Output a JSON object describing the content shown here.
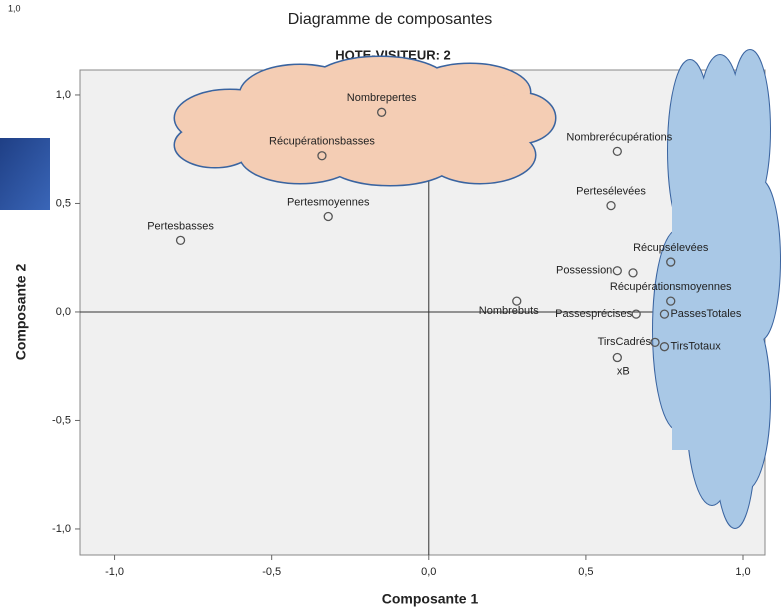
{
  "chart_data": {
    "type": "scatter",
    "corner_note": "1,0",
    "title": "Diagramme de composantes",
    "subtitle": "HOTE-VISITEUR: 2",
    "xlabel": "Composante 1",
    "ylabel": "Composante 2",
    "categories": [
      "Nombrepertes",
      "Récupérationsbasses",
      "Nombrerécupérations",
      "Pertesélevées",
      "Pertesmoyennes",
      "Pertesbasses",
      "Récupsélevées",
      "Possession",
      null,
      "Récupérationsmoyennes",
      "Nombrebuts",
      "Passesprécises",
      "PassesTotales",
      "TirsCadrés",
      "TirsTotaux",
      "xB"
    ],
    "x": [
      -0.15,
      -0.34,
      0.6,
      0.58,
      -0.32,
      -0.79,
      0.77,
      0.6,
      0.65,
      0.77,
      0.28,
      0.66,
      0.75,
      0.72,
      0.75,
      0.6
    ],
    "values": [
      0.92,
      0.72,
      0.74,
      0.49,
      0.44,
      0.33,
      0.23,
      0.19,
      0.18,
      0.05,
      0.05,
      -0.01,
      -0.01,
      -0.14,
      -0.16,
      -0.21
    ],
    "xlim": [
      -1.11,
      1.07
    ],
    "ylim": [
      -1.12,
      1.115
    ],
    "xticks": [
      {
        "value": -1,
        "label": "-1,0"
      },
      {
        "value": -0.5,
        "label": "-0,5"
      },
      {
        "value": 0,
        "label": "0,0"
      },
      {
        "value": 0.5,
        "label": "0,5"
      },
      {
        "value": 1,
        "label": "1,0"
      }
    ],
    "yticks": [
      {
        "value": -1,
        "label": "-1,0"
      },
      {
        "value": -0.5,
        "label": "-0,5"
      },
      {
        "value": 0,
        "label": "0,0"
      },
      {
        "value": 0.5,
        "label": "0,5"
      },
      {
        "value": 1,
        "label": "1,0"
      }
    ],
    "color": "#555555"
  }
}
